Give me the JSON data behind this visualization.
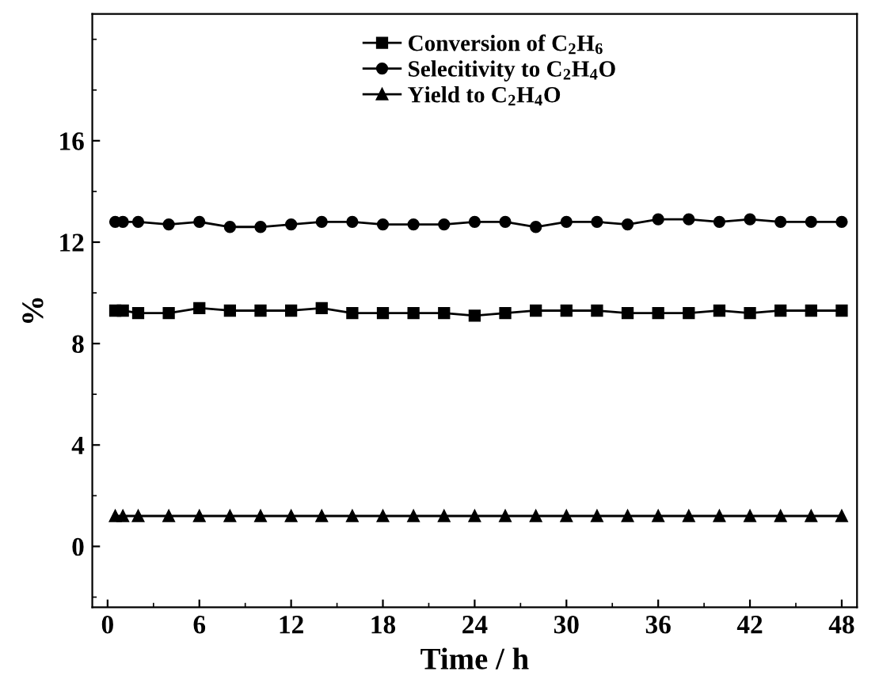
{
  "chart_data": {
    "type": "line",
    "xlabel": "Time / h",
    "ylabel": "%",
    "x": [
      0.5,
      1,
      2,
      4,
      6,
      8,
      10,
      12,
      14,
      16,
      18,
      20,
      22,
      24,
      26,
      28,
      30,
      32,
      34,
      36,
      38,
      40,
      42,
      44,
      46,
      48
    ],
    "series": [
      {
        "name": "Conversion of C$_{2}$H$_{6}$",
        "color": "#000000",
        "marker": "square",
        "values": [
          9.3,
          9.3,
          9.2,
          9.2,
          9.4,
          9.3,
          9.3,
          9.3,
          9.4,
          9.2,
          9.2,
          9.2,
          9.2,
          9.1,
          9.2,
          9.3,
          9.3,
          9.3,
          9.2,
          9.2,
          9.2,
          9.3,
          9.2,
          9.3,
          9.3,
          9.3
        ]
      },
      {
        "name": "Selecitivity to C$_{2}$H$_{4}$O",
        "color": "#000000",
        "marker": "circle",
        "values": [
          12.8,
          12.8,
          12.8,
          12.7,
          12.8,
          12.6,
          12.6,
          12.7,
          12.8,
          12.8,
          12.7,
          12.7,
          12.7,
          12.8,
          12.8,
          12.6,
          12.8,
          12.8,
          12.7,
          12.9,
          12.9,
          12.8,
          12.9,
          12.8,
          12.8,
          12.8
        ]
      },
      {
        "name": "Yield to C$_{2}$H$_{4}$O",
        "color": "#000000",
        "marker": "triangle",
        "values": [
          1.2,
          1.2,
          1.2,
          1.2,
          1.2,
          1.2,
          1.2,
          1.2,
          1.2,
          1.2,
          1.2,
          1.2,
          1.2,
          1.2,
          1.2,
          1.2,
          1.2,
          1.2,
          1.2,
          1.2,
          1.2,
          1.2,
          1.2,
          1.2,
          1.2,
          1.2
        ]
      }
    ],
    "xlim": [
      -1,
      49
    ],
    "xticks": [
      0,
      6,
      12,
      18,
      24,
      30,
      36,
      42,
      48
    ],
    "ylim": [
      -2.4,
      21
    ],
    "yticks": [
      0,
      4,
      8,
      12,
      16
    ],
    "grid": false,
    "legend": "top",
    "line_style": "solid"
  }
}
